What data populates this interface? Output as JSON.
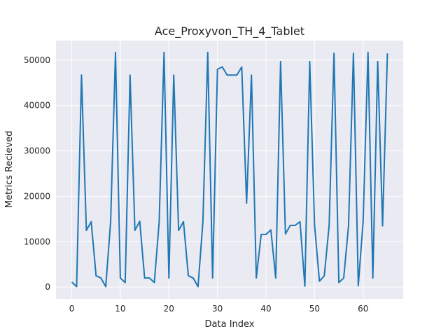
{
  "chart_data": {
    "type": "line",
    "title": "Ace_Proxyvon_TH_4_Tablet",
    "xlabel": "Data Index",
    "ylabel": "Metrics Recieved",
    "xlim": [
      -3.25,
      68.25
    ],
    "ylim": [
      -2600,
      54300
    ],
    "xticks": [
      0,
      10,
      20,
      30,
      40,
      50,
      60
    ],
    "yticks": [
      0,
      10000,
      20000,
      30000,
      40000,
      50000
    ],
    "grid": true,
    "style": {
      "background": "#eaeaf2",
      "grid_color": "#ffffff",
      "line_color": "#1f77b4"
    },
    "series": [
      {
        "x": [
          0,
          1,
          2,
          3,
          4,
          5,
          6,
          7,
          8,
          9,
          10,
          11,
          12,
          13,
          14,
          15,
          16,
          17,
          18,
          19,
          20,
          21,
          22,
          23,
          24,
          25,
          26,
          27,
          28,
          29,
          30,
          31,
          32,
          33,
          34,
          35,
          36,
          37,
          38,
          39,
          40,
          41,
          42,
          43,
          44,
          45,
          46,
          47,
          48,
          49,
          50,
          51,
          52,
          53,
          54,
          55,
          56,
          57,
          58,
          59,
          60,
          61,
          62,
          63,
          64,
          65
        ],
        "values": [
          1100,
          100,
          46700,
          12500,
          14400,
          2500,
          2000,
          100,
          14400,
          51700,
          2000,
          1000,
          46700,
          12500,
          14500,
          2000,
          2000,
          1000,
          14400,
          51700,
          2000,
          46700,
          12500,
          14400,
          2500,
          2000,
          100,
          14400,
          51700,
          2000,
          48000,
          48500,
          46700,
          46700,
          46700,
          48500,
          18500,
          46700,
          2000,
          11600,
          11600,
          12600,
          2000,
          49700,
          11700,
          13600,
          13600,
          14400,
          200,
          49700,
          13600,
          1300,
          2500,
          13600,
          51500,
          1000,
          2000,
          13600,
          51500,
          300,
          14500,
          51700,
          2000,
          49700,
          13500,
          51500
        ]
      }
    ]
  }
}
